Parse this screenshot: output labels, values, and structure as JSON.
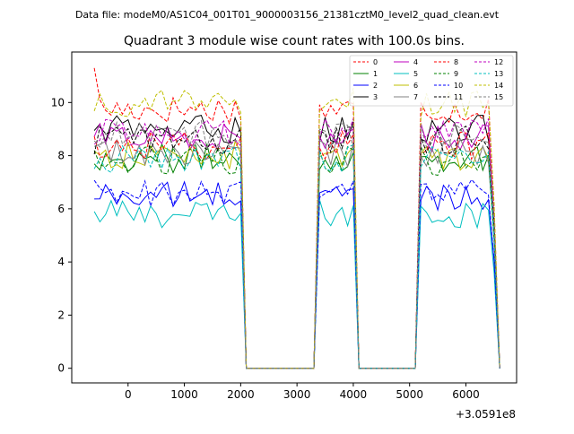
{
  "suptitle": "Data file: modeM0/AS1C04_001T01_9000003156_21381cztM0_level2_quad_clean.evt",
  "chart_data": {
    "type": "line",
    "title": "Quadrant 3 module wise count rates with 100.0s bins.",
    "xlabel": "",
    "ylabel": "",
    "x_offset_label": "+3.0591e8",
    "xlim": [
      -1000,
      6900
    ],
    "ylim": [
      -0.55,
      11.9
    ],
    "x_ticks": [
      0,
      1000,
      2000,
      3000,
      4000,
      5000,
      6000
    ],
    "y_ticks": [
      0,
      2,
      4,
      6,
      8,
      10
    ],
    "x_tick_labels": [
      "0",
      "1000",
      "2000",
      "3000",
      "4000",
      "5000",
      "6000"
    ],
    "y_tick_labels": [
      "0",
      "2",
      "4",
      "6",
      "8",
      "10"
    ],
    "grid": false,
    "legend_position": "top-right",
    "segments": [
      {
        "start": -600,
        "end": 2000
      },
      {
        "start": 3400,
        "end": 4000
      },
      {
        "start": 5200,
        "end": 6500
      }
    ],
    "x": [
      -600,
      -500,
      -400,
      -300,
      -200,
      -100,
      0,
      100,
      200,
      300,
      400,
      500,
      600,
      700,
      800,
      900,
      1000,
      1100,
      1200,
      1300,
      1400,
      1500,
      1600,
      1700,
      1800,
      1900,
      2000,
      2100,
      2200,
      2300,
      2400,
      2500,
      2600,
      2700,
      2800,
      2900,
      3000,
      3100,
      3200,
      3300,
      3400,
      3500,
      3600,
      3700,
      3800,
      3900,
      4000,
      4100,
      4200,
      4300,
      4400,
      4500,
      4600,
      4700,
      4800,
      4900,
      5000,
      5100,
      5200,
      5300,
      5400,
      5500,
      5600,
      5700,
      5800,
      5900,
      6000,
      6100,
      6200,
      6300,
      6400,
      6500,
      6600
    ],
    "series": [
      {
        "name": "0",
        "color": "#ff0000",
        "dash": "dashed",
        "level": 9.75,
        "first": 11.3
      },
      {
        "name": "1",
        "color": "#008000",
        "dash": "solid",
        "level": 7.9
      },
      {
        "name": "2",
        "color": "#0000ff",
        "dash": "solid",
        "level": 6.5
      },
      {
        "name": "3",
        "color": "#000000",
        "dash": "solid",
        "level": 9.0
      },
      {
        "name": "4",
        "color": "#bf00bf",
        "dash": "solid",
        "level": 8.7
      },
      {
        "name": "5",
        "color": "#00bfbf",
        "dash": "solid",
        "level": 5.8
      },
      {
        "name": "6",
        "color": "#bfbf00",
        "dash": "solid",
        "level": 8.0
      },
      {
        "name": "7",
        "color": "#808080",
        "dash": "solid",
        "level": 8.1
      },
      {
        "name": "8",
        "color": "#ff0000",
        "dash": "dashed",
        "level": 8.4
      },
      {
        "name": "9",
        "color": "#008000",
        "dash": "dashed",
        "level": 7.8
      },
      {
        "name": "10",
        "color": "#0000ff",
        "dash": "dashed",
        "level": 6.6
      },
      {
        "name": "11",
        "color": "#000000",
        "dash": "dashed",
        "level": 8.6
      },
      {
        "name": "12",
        "color": "#bf00bf",
        "dash": "dashed",
        "level": 8.9
      },
      {
        "name": "13",
        "color": "#00bfbf",
        "dash": "dashed",
        "level": 7.9
      },
      {
        "name": "14",
        "color": "#bfbf00",
        "dash": "dashed",
        "level": 10.0
      },
      {
        "name": "15",
        "color": "#808080",
        "dash": "dashed",
        "level": 8.8
      }
    ]
  }
}
